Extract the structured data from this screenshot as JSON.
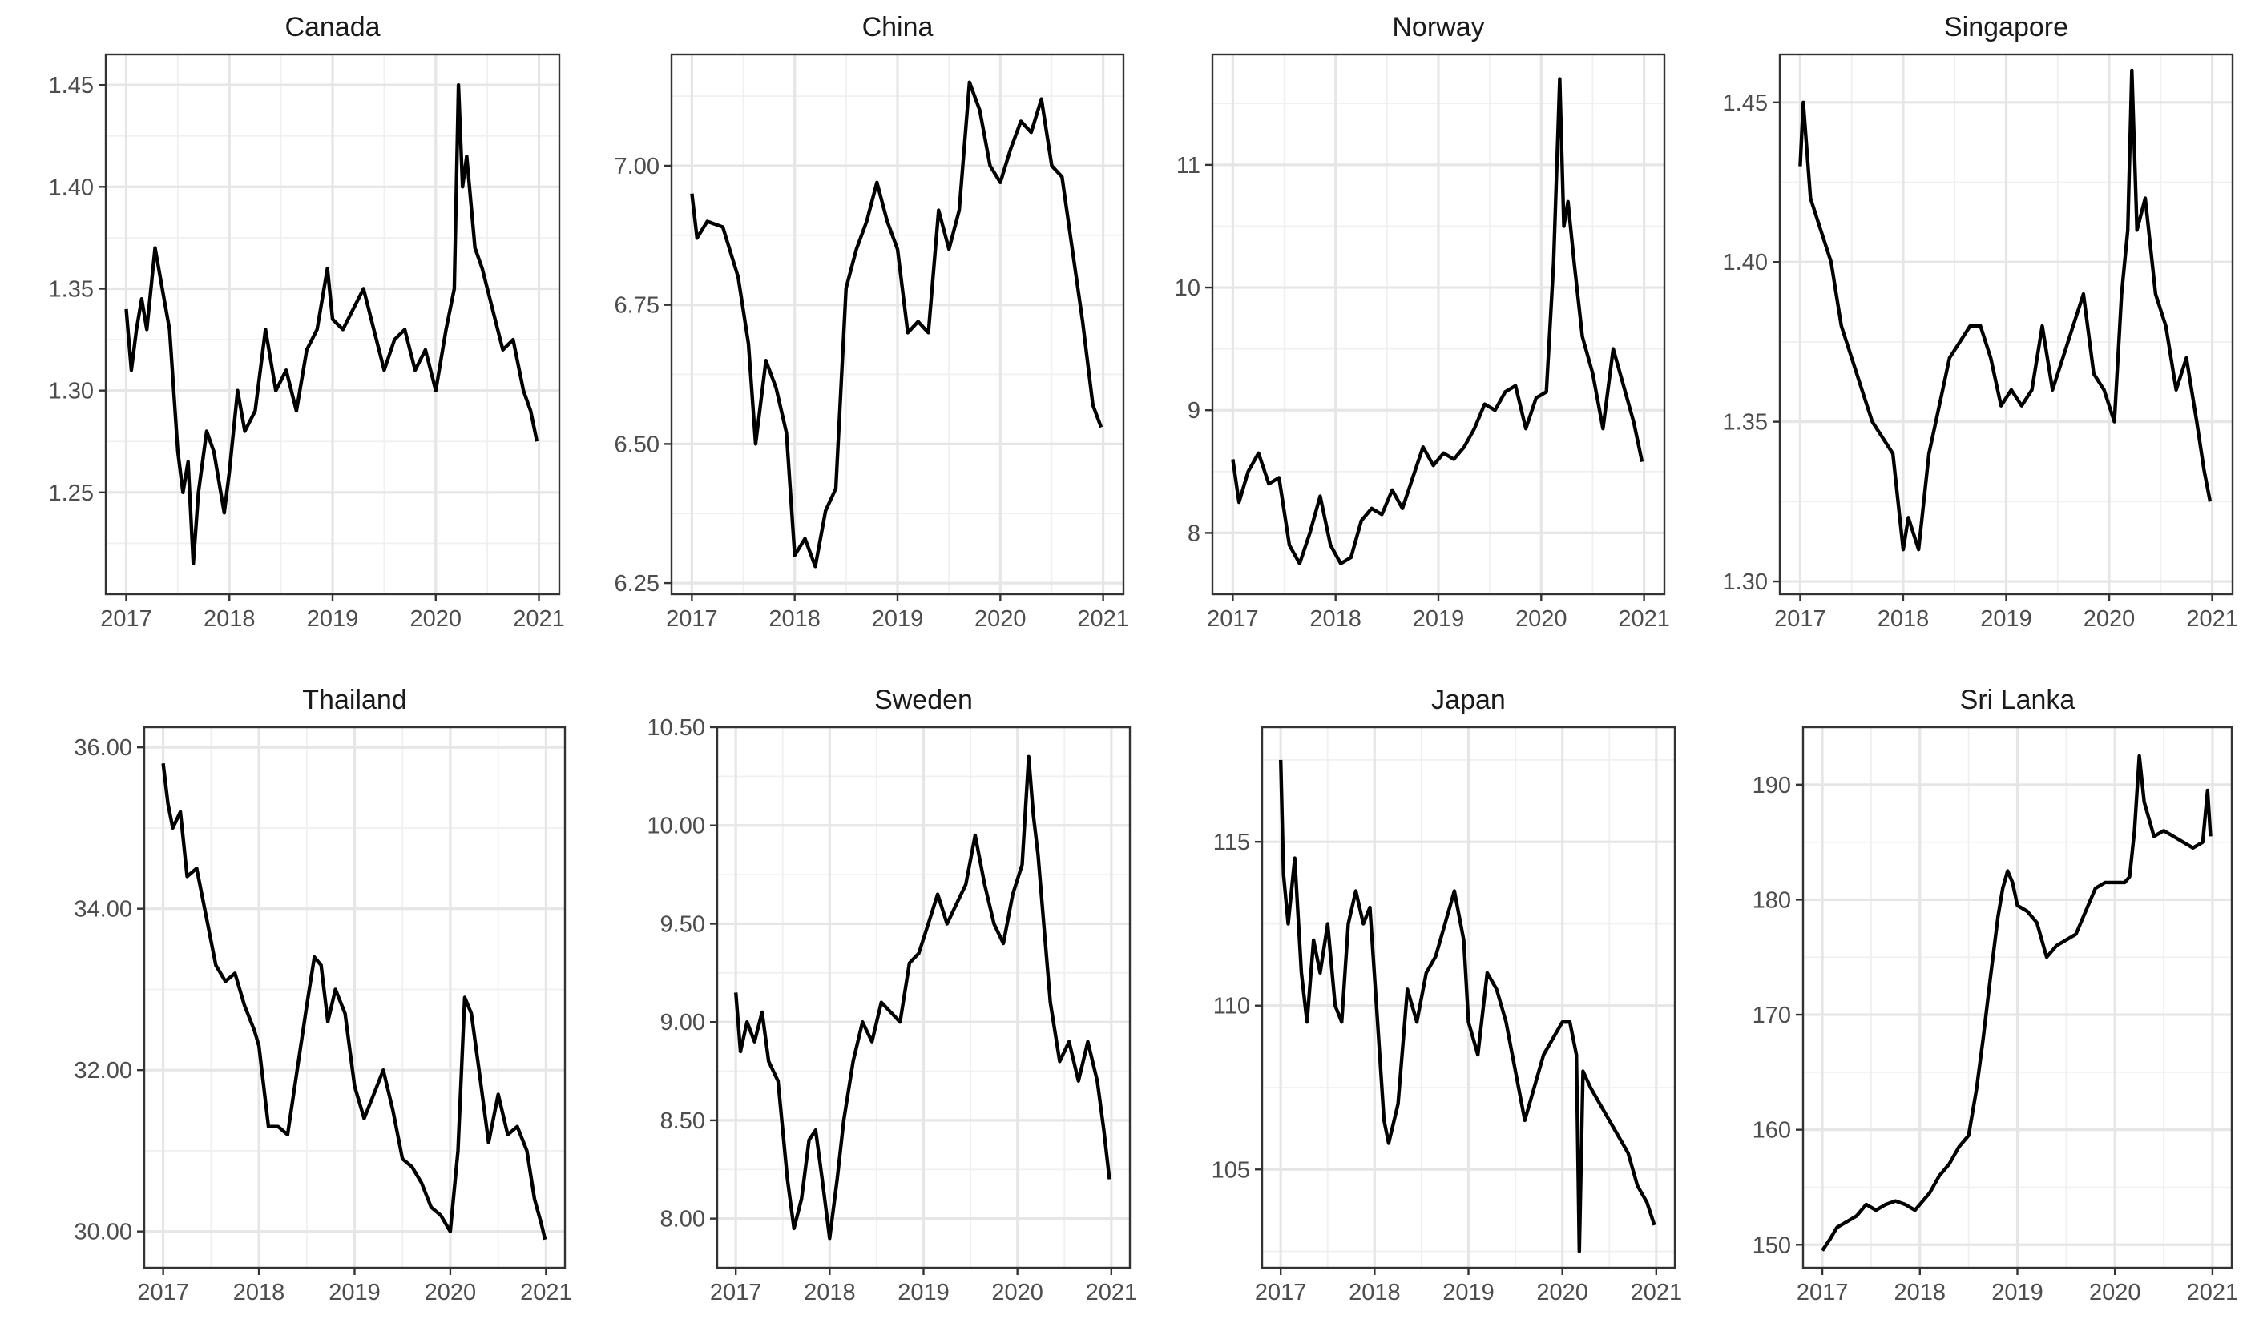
{
  "chart_data": [
    {
      "type": "line",
      "title": "Canada",
      "xlabel": "",
      "ylabel": "",
      "xlim": [
        2017,
        2021
      ],
      "ylim": [
        1.2,
        1.465
      ],
      "x_ticks": [
        "2017",
        "2018",
        "2019",
        "2020",
        "2021"
      ],
      "y_ticks": [
        "1.25",
        "1.30",
        "1.35",
        "1.40",
        "1.45"
      ],
      "grid": true,
      "series": [
        {
          "x": [
            2017.0,
            2017.05,
            2017.1,
            2017.15,
            2017.2,
            2017.28,
            2017.35,
            2017.42,
            2017.5,
            2017.55,
            2017.6,
            2017.65,
            2017.7,
            2017.78,
            2017.85,
            2017.95,
            2018.0,
            2018.08,
            2018.15,
            2018.25,
            2018.35,
            2018.45,
            2018.55,
            2018.65,
            2018.75,
            2018.85,
            2018.95,
            2019.0,
            2019.1,
            2019.2,
            2019.3,
            2019.4,
            2019.5,
            2019.6,
            2019.7,
            2019.8,
            2019.9,
            2020.0,
            2020.1,
            2020.18,
            2020.22,
            2020.26,
            2020.3,
            2020.38,
            2020.45,
            2020.55,
            2020.65,
            2020.75,
            2020.85,
            2020.92,
            2020.98
          ],
          "y": [
            1.34,
            1.31,
            1.33,
            1.345,
            1.33,
            1.37,
            1.35,
            1.33,
            1.27,
            1.25,
            1.265,
            1.215,
            1.25,
            1.28,
            1.27,
            1.24,
            1.26,
            1.3,
            1.28,
            1.29,
            1.33,
            1.3,
            1.31,
            1.29,
            1.32,
            1.33,
            1.36,
            1.335,
            1.33,
            1.34,
            1.35,
            1.33,
            1.31,
            1.325,
            1.33,
            1.31,
            1.32,
            1.3,
            1.33,
            1.35,
            1.45,
            1.4,
            1.415,
            1.37,
            1.36,
            1.34,
            1.32,
            1.325,
            1.3,
            1.29,
            1.275
          ]
        }
      ]
    },
    {
      "type": "line",
      "title": "China",
      "xlabel": "",
      "ylabel": "",
      "xlim": [
        2017,
        2021
      ],
      "ylim": [
        6.23,
        7.2
      ],
      "x_ticks": [
        "2017",
        "2018",
        "2019",
        "2020",
        "2021"
      ],
      "y_ticks": [
        "6.25",
        "6.50",
        "6.75",
        "7.00"
      ],
      "grid": true,
      "series": [
        {
          "x": [
            2017.0,
            2017.05,
            2017.15,
            2017.3,
            2017.45,
            2017.55,
            2017.62,
            2017.72,
            2017.82,
            2017.92,
            2018.0,
            2018.1,
            2018.2,
            2018.3,
            2018.4,
            2018.5,
            2018.6,
            2018.7,
            2018.8,
            2018.9,
            2019.0,
            2019.1,
            2019.2,
            2019.3,
            2019.4,
            2019.5,
            2019.6,
            2019.7,
            2019.8,
            2019.9,
            2020.0,
            2020.1,
            2020.2,
            2020.3,
            2020.4,
            2020.5,
            2020.6,
            2020.7,
            2020.8,
            2020.9,
            2020.98
          ],
          "y": [
            6.95,
            6.87,
            6.9,
            6.89,
            6.8,
            6.68,
            6.5,
            6.65,
            6.6,
            6.52,
            6.3,
            6.33,
            6.28,
            6.38,
            6.42,
            6.78,
            6.85,
            6.9,
            6.97,
            6.9,
            6.85,
            6.7,
            6.72,
            6.7,
            6.92,
            6.85,
            6.92,
            7.15,
            7.1,
            7.0,
            6.97,
            7.03,
            7.08,
            7.06,
            7.12,
            7.0,
            6.98,
            6.85,
            6.72,
            6.57,
            6.53
          ]
        }
      ]
    },
    {
      "type": "line",
      "title": "Norway",
      "xlabel": "",
      "ylabel": "",
      "xlim": [
        2017,
        2021
      ],
      "ylim": [
        7.5,
        11.9
      ],
      "x_ticks": [
        "2017",
        "2018",
        "2019",
        "2020",
        "2021"
      ],
      "y_ticks": [
        "8",
        "9",
        "10",
        "11"
      ],
      "grid": true,
      "series": [
        {
          "x": [
            2017.0,
            2017.06,
            2017.15,
            2017.25,
            2017.35,
            2017.45,
            2017.55,
            2017.65,
            2017.75,
            2017.85,
            2017.95,
            2018.05,
            2018.15,
            2018.25,
            2018.35,
            2018.45,
            2018.55,
            2018.65,
            2018.75,
            2018.85,
            2018.95,
            2019.05,
            2019.15,
            2019.25,
            2019.35,
            2019.45,
            2019.55,
            2019.65,
            2019.75,
            2019.85,
            2019.95,
            2020.05,
            2020.12,
            2020.18,
            2020.22,
            2020.26,
            2020.32,
            2020.4,
            2020.5,
            2020.6,
            2020.7,
            2020.8,
            2020.9,
            2020.98
          ],
          "y": [
            8.6,
            8.25,
            8.5,
            8.65,
            8.4,
            8.45,
            7.9,
            7.75,
            8.0,
            8.3,
            7.9,
            7.75,
            7.8,
            8.1,
            8.2,
            8.15,
            8.35,
            8.2,
            8.45,
            8.7,
            8.55,
            8.65,
            8.6,
            8.7,
            8.85,
            9.05,
            9.0,
            9.15,
            9.2,
            8.85,
            9.1,
            9.15,
            10.2,
            11.7,
            10.5,
            10.7,
            10.2,
            9.6,
            9.3,
            8.85,
            9.5,
            9.2,
            8.9,
            8.58
          ]
        }
      ]
    },
    {
      "type": "line",
      "title": "Singapore",
      "xlabel": "",
      "ylabel": "",
      "xlim": [
        2017,
        2021
      ],
      "ylim": [
        1.296,
        1.465
      ],
      "x_ticks": [
        "2017",
        "2018",
        "2019",
        "2020",
        "2021"
      ],
      "y_ticks": [
        "1.30",
        "1.35",
        "1.40",
        "1.45"
      ],
      "grid": true,
      "series": [
        {
          "x": [
            2017.0,
            2017.03,
            2017.1,
            2017.2,
            2017.3,
            2017.4,
            2017.5,
            2017.6,
            2017.7,
            2017.8,
            2017.9,
            2018.0,
            2018.05,
            2018.15,
            2018.25,
            2018.35,
            2018.45,
            2018.55,
            2018.65,
            2018.75,
            2018.85,
            2018.95,
            2019.05,
            2019.15,
            2019.25,
            2019.35,
            2019.45,
            2019.55,
            2019.65,
            2019.75,
            2019.85,
            2019.95,
            2020.05,
            2020.12,
            2020.18,
            2020.22,
            2020.27,
            2020.35,
            2020.45,
            2020.55,
            2020.65,
            2020.75,
            2020.85,
            2020.92,
            2020.98
          ],
          "y": [
            1.43,
            1.45,
            1.42,
            1.41,
            1.4,
            1.38,
            1.37,
            1.36,
            1.35,
            1.345,
            1.34,
            1.31,
            1.32,
            1.31,
            1.34,
            1.355,
            1.37,
            1.375,
            1.38,
            1.38,
            1.37,
            1.355,
            1.36,
            1.355,
            1.36,
            1.38,
            1.36,
            1.37,
            1.38,
            1.39,
            1.365,
            1.36,
            1.35,
            1.39,
            1.41,
            1.46,
            1.41,
            1.42,
            1.39,
            1.38,
            1.36,
            1.37,
            1.35,
            1.335,
            1.325
          ]
        }
      ]
    },
    {
      "type": "line",
      "title": "Thailand",
      "xlabel": "",
      "ylabel": "",
      "xlim": [
        2017,
        2021
      ],
      "ylim": [
        29.55,
        36.25
      ],
      "x_ticks": [
        "2017",
        "2018",
        "2019",
        "2020",
        "2021"
      ],
      "y_ticks": [
        "30.00",
        "32.00",
        "34.00",
        "36.00"
      ],
      "grid": true,
      "series": [
        {
          "x": [
            2017.0,
            2017.05,
            2017.1,
            2017.18,
            2017.25,
            2017.35,
            2017.45,
            2017.55,
            2017.65,
            2017.75,
            2017.85,
            2017.95,
            2018.0,
            2018.1,
            2018.2,
            2018.3,
            2018.4,
            2018.5,
            2018.58,
            2018.65,
            2018.72,
            2018.8,
            2018.9,
            2019.0,
            2019.1,
            2019.2,
            2019.3,
            2019.4,
            2019.5,
            2019.6,
            2019.7,
            2019.8,
            2019.9,
            2020.0,
            2020.08,
            2020.15,
            2020.22,
            2020.3,
            2020.4,
            2020.5,
            2020.6,
            2020.7,
            2020.8,
            2020.88,
            2020.95,
            2020.99
          ],
          "y": [
            35.8,
            35.3,
            35.0,
            35.2,
            34.4,
            34.5,
            33.9,
            33.3,
            33.1,
            33.2,
            32.8,
            32.5,
            32.3,
            31.3,
            31.3,
            31.2,
            32.0,
            32.8,
            33.4,
            33.3,
            32.6,
            33.0,
            32.7,
            31.8,
            31.4,
            31.7,
            32.0,
            31.5,
            30.9,
            30.8,
            30.6,
            30.3,
            30.2,
            30.0,
            31.0,
            32.9,
            32.7,
            32.0,
            31.1,
            31.7,
            31.2,
            31.3,
            31.0,
            30.4,
            30.1,
            29.9
          ]
        }
      ]
    },
    {
      "type": "line",
      "title": "Sweden",
      "xlabel": "",
      "ylabel": "",
      "xlim": [
        2017,
        2021
      ],
      "ylim": [
        7.75,
        10.5
      ],
      "x_ticks": [
        "2017",
        "2018",
        "2019",
        "2020",
        "2021"
      ],
      "y_ticks": [
        "8.00",
        "8.50",
        "9.00",
        "9.50",
        "10.00",
        "10.50"
      ],
      "grid": true,
      "series": [
        {
          "x": [
            2017.0,
            2017.05,
            2017.12,
            2017.2,
            2017.28,
            2017.35,
            2017.45,
            2017.55,
            2017.62,
            2017.7,
            2017.78,
            2017.85,
            2017.92,
            2018.0,
            2018.08,
            2018.15,
            2018.25,
            2018.35,
            2018.45,
            2018.55,
            2018.65,
            2018.75,
            2018.85,
            2018.95,
            2019.05,
            2019.15,
            2019.25,
            2019.35,
            2019.45,
            2019.55,
            2019.65,
            2019.75,
            2019.85,
            2019.95,
            2020.05,
            2020.12,
            2020.17,
            2020.22,
            2020.28,
            2020.35,
            2020.45,
            2020.55,
            2020.65,
            2020.75,
            2020.85,
            2020.92,
            2020.98
          ],
          "y": [
            9.15,
            8.85,
            9.0,
            8.9,
            9.05,
            8.8,
            8.7,
            8.2,
            7.95,
            8.1,
            8.4,
            8.45,
            8.2,
            7.9,
            8.2,
            8.5,
            8.8,
            9.0,
            8.9,
            9.1,
            9.05,
            9.0,
            9.3,
            9.35,
            9.5,
            9.65,
            9.5,
            9.6,
            9.7,
            9.95,
            9.7,
            9.5,
            9.4,
            9.65,
            9.8,
            10.35,
            10.05,
            9.85,
            9.5,
            9.1,
            8.8,
            8.9,
            8.7,
            8.9,
            8.7,
            8.45,
            8.2
          ]
        }
      ]
    },
    {
      "type": "line",
      "title": "Japan",
      "xlabel": "",
      "ylabel": "",
      "xlim": [
        2017,
        2021
      ],
      "ylim": [
        102.0,
        118.5
      ],
      "x_ticks": [
        "2017",
        "2018",
        "2019",
        "2020",
        "2021"
      ],
      "y_ticks": [
        "105",
        "110",
        "115"
      ],
      "grid": true,
      "series": [
        {
          "x": [
            2017.0,
            2017.03,
            2017.08,
            2017.15,
            2017.22,
            2017.28,
            2017.35,
            2017.42,
            2017.5,
            2017.58,
            2017.65,
            2017.72,
            2017.8,
            2017.88,
            2017.95,
            2018.02,
            2018.1,
            2018.15,
            2018.25,
            2018.35,
            2018.45,
            2018.55,
            2018.65,
            2018.75,
            2018.85,
            2018.95,
            2019.0,
            2019.1,
            2019.2,
            2019.3,
            2019.4,
            2019.5,
            2019.6,
            2019.7,
            2019.8,
            2019.9,
            2020.0,
            2020.08,
            2020.15,
            2020.18,
            2020.22,
            2020.3,
            2020.4,
            2020.5,
            2020.6,
            2020.7,
            2020.8,
            2020.9,
            2020.98
          ],
          "y": [
            117.5,
            114.0,
            112.5,
            114.5,
            111.0,
            109.5,
            112.0,
            111.0,
            112.5,
            110.0,
            109.5,
            112.5,
            113.5,
            112.5,
            113.0,
            110.0,
            106.5,
            105.8,
            107.0,
            110.5,
            109.5,
            111.0,
            111.5,
            112.5,
            113.5,
            112.0,
            109.5,
            108.5,
            111.0,
            110.5,
            109.5,
            108.0,
            106.5,
            107.5,
            108.5,
            109.0,
            109.5,
            109.5,
            108.5,
            102.5,
            108.0,
            107.5,
            107.0,
            106.5,
            106.0,
            105.5,
            104.5,
            104.0,
            103.3
          ]
        }
      ]
    },
    {
      "type": "line",
      "title": "Sri Lanka",
      "xlabel": "",
      "ylabel": "",
      "xlim": [
        2017,
        2021
      ],
      "ylim": [
        148.0,
        195.0
      ],
      "x_ticks": [
        "2017",
        "2018",
        "2019",
        "2020",
        "2021"
      ],
      "y_ticks": [
        "150",
        "160",
        "170",
        "180",
        "190"
      ],
      "grid": true,
      "series": [
        {
          "x": [
            2017.0,
            2017.08,
            2017.15,
            2017.25,
            2017.35,
            2017.45,
            2017.55,
            2017.65,
            2017.75,
            2017.85,
            2017.95,
            2018.0,
            2018.1,
            2018.2,
            2018.3,
            2018.4,
            2018.5,
            2018.58,
            2018.65,
            2018.72,
            2018.8,
            2018.85,
            2018.9,
            2018.95,
            2019.0,
            2019.1,
            2019.2,
            2019.3,
            2019.4,
            2019.5,
            2019.6,
            2019.7,
            2019.8,
            2019.9,
            2020.0,
            2020.1,
            2020.15,
            2020.2,
            2020.25,
            2020.3,
            2020.4,
            2020.5,
            2020.6,
            2020.7,
            2020.8,
            2020.9,
            2020.95,
            2020.98
          ],
          "y": [
            149.5,
            150.5,
            151.5,
            152.0,
            152.5,
            153.5,
            153.0,
            153.5,
            153.8,
            153.5,
            153.0,
            153.5,
            154.5,
            156.0,
            157.0,
            158.5,
            159.5,
            163.5,
            168.0,
            173.0,
            178.5,
            181.0,
            182.5,
            181.5,
            179.5,
            179.0,
            178.0,
            175.0,
            176.0,
            176.5,
            177.0,
            179.0,
            181.0,
            181.5,
            181.5,
            181.5,
            182.0,
            186.0,
            192.5,
            188.5,
            185.5,
            186.0,
            185.5,
            185.0,
            184.5,
            185.0,
            189.5,
            185.5
          ]
        }
      ]
    }
  ]
}
